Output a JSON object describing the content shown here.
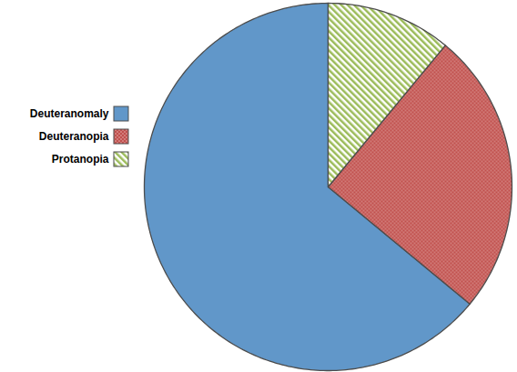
{
  "chart_data": {
    "type": "pie",
    "categories": [
      "Deuteranomaly",
      "Deuteranopia",
      "Protanopia"
    ],
    "values": [
      64,
      25,
      11
    ],
    "colors": [
      "#6197c9",
      "#c0504d",
      "#9bbb59"
    ],
    "legend": "left"
  }
}
